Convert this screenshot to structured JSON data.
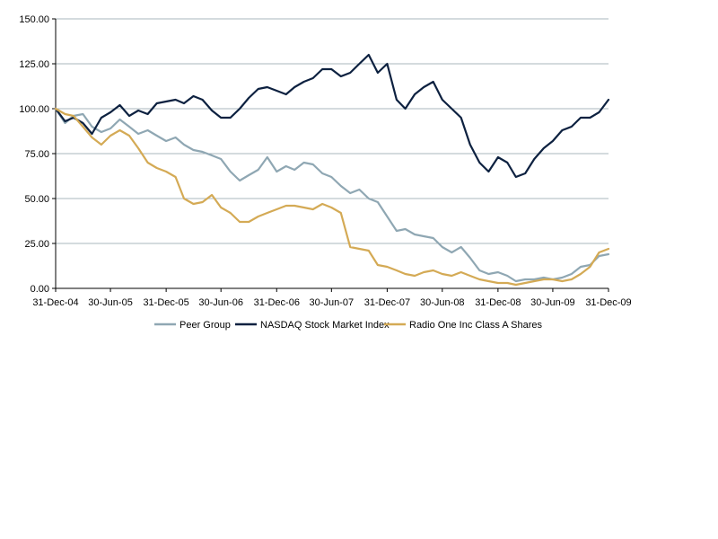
{
  "chart_data": {
    "type": "line",
    "title": "",
    "xlabel": "",
    "ylabel": "",
    "ylim": [
      0,
      150
    ],
    "yticks": [
      "0.00",
      "25.00",
      "50.00",
      "75.00",
      "100.00",
      "125.00",
      "150.00"
    ],
    "xlim": [
      "2004-12-31",
      "2009-12-31"
    ],
    "xticks": [
      {
        "date": "2004-12-31",
        "label": "31-Dec-04"
      },
      {
        "date": "2005-06-30",
        "label": "30-Jun-05"
      },
      {
        "date": "2005-12-31",
        "label": "31-Dec-05"
      },
      {
        "date": "2006-06-30",
        "label": "30-Jun-06"
      },
      {
        "date": "2006-12-31",
        "label": "31-Dec-06"
      },
      {
        "date": "2007-06-30",
        "label": "30-Jun-07"
      },
      {
        "date": "2007-12-31",
        "label": "31-Dec-07"
      },
      {
        "date": "2008-06-30",
        "label": "30-Jun-08"
      },
      {
        "date": "2008-12-31",
        "label": "31-Dec-08"
      },
      {
        "date": "2009-06-30",
        "label": "30-Jun-09"
      },
      {
        "date": "2009-12-31",
        "label": "31-Dec-09"
      }
    ],
    "grid": true,
    "legend_position": "bottom",
    "series": [
      {
        "name": "Peer Group",
        "color": "#8fa7b3",
        "x": [
          "2004-12-31",
          "2005-01-31",
          "2005-02-28",
          "2005-03-31",
          "2005-04-30",
          "2005-05-31",
          "2005-06-30",
          "2005-07-31",
          "2005-08-31",
          "2005-09-30",
          "2005-10-31",
          "2005-11-30",
          "2005-12-31",
          "2006-01-31",
          "2006-02-28",
          "2006-03-31",
          "2006-04-30",
          "2006-05-31",
          "2006-06-30",
          "2006-07-31",
          "2006-08-31",
          "2006-09-30",
          "2006-10-31",
          "2006-11-30",
          "2006-12-31",
          "2007-01-31",
          "2007-02-28",
          "2007-03-31",
          "2007-04-30",
          "2007-05-31",
          "2007-06-30",
          "2007-07-31",
          "2007-08-31",
          "2007-09-30",
          "2007-10-31",
          "2007-11-30",
          "2007-12-31",
          "2008-01-31",
          "2008-02-29",
          "2008-03-31",
          "2008-04-30",
          "2008-05-31",
          "2008-06-30",
          "2008-07-31",
          "2008-08-31",
          "2008-09-30",
          "2008-10-31",
          "2008-11-30",
          "2008-12-31",
          "2009-01-31",
          "2009-02-28",
          "2009-03-31",
          "2009-04-30",
          "2009-05-31",
          "2009-06-30",
          "2009-07-31",
          "2009-08-31",
          "2009-09-30",
          "2009-10-31",
          "2009-11-30",
          "2009-12-31"
        ],
        "values": [
          100,
          92,
          96,
          97,
          90,
          87,
          89,
          94,
          90,
          86,
          88,
          85,
          82,
          84,
          80,
          77,
          76,
          74,
          72,
          65,
          60,
          63,
          66,
          73,
          65,
          68,
          66,
          70,
          69,
          64,
          62,
          57,
          53,
          55,
          50,
          48,
          40,
          32,
          33,
          30,
          29,
          28,
          23,
          20,
          23,
          17,
          10,
          8,
          9,
          7,
          4,
          5,
          5,
          6,
          5,
          6,
          8,
          12,
          13,
          18,
          19
        ]
      },
      {
        "name": "NASDAQ Stock Market Index",
        "color": "#0d2140",
        "x": [
          "2004-12-31",
          "2005-01-31",
          "2005-02-28",
          "2005-03-31",
          "2005-04-30",
          "2005-05-31",
          "2005-06-30",
          "2005-07-31",
          "2005-08-31",
          "2005-09-30",
          "2005-10-31",
          "2005-11-30",
          "2005-12-31",
          "2006-01-31",
          "2006-02-28",
          "2006-03-31",
          "2006-04-30",
          "2006-05-31",
          "2006-06-30",
          "2006-07-31",
          "2006-08-31",
          "2006-09-30",
          "2006-10-31",
          "2006-11-30",
          "2006-12-31",
          "2007-01-31",
          "2007-02-28",
          "2007-03-31",
          "2007-04-30",
          "2007-05-31",
          "2007-06-30",
          "2007-07-31",
          "2007-08-31",
          "2007-09-30",
          "2007-10-31",
          "2007-11-30",
          "2007-12-31",
          "2008-01-31",
          "2008-02-29",
          "2008-03-31",
          "2008-04-30",
          "2008-05-31",
          "2008-06-30",
          "2008-07-31",
          "2008-08-31",
          "2008-09-30",
          "2008-10-31",
          "2008-11-30",
          "2008-12-31",
          "2009-01-31",
          "2009-02-28",
          "2009-03-31",
          "2009-04-30",
          "2009-05-31",
          "2009-06-30",
          "2009-07-31",
          "2009-08-31",
          "2009-09-30",
          "2009-10-31",
          "2009-11-30",
          "2009-12-31"
        ],
        "values": [
          100,
          93,
          95,
          92,
          86,
          95,
          98,
          102,
          96,
          99,
          97,
          103,
          104,
          105,
          103,
          107,
          105,
          99,
          95,
          95,
          100,
          106,
          111,
          112,
          110,
          108,
          112,
          115,
          117,
          122,
          122,
          118,
          120,
          125,
          130,
          120,
          125,
          105,
          100,
          108,
          112,
          115,
          105,
          100,
          95,
          80,
          70,
          65,
          73,
          70,
          62,
          64,
          72,
          78,
          82,
          88,
          90,
          95,
          95,
          98,
          105
        ]
      },
      {
        "name": "Radio One Inc Class A Shares",
        "color": "#d4aa55",
        "x": [
          "2004-12-31",
          "2005-01-31",
          "2005-02-28",
          "2005-03-31",
          "2005-04-30",
          "2005-05-31",
          "2005-06-30",
          "2005-07-31",
          "2005-08-31",
          "2005-09-30",
          "2005-10-31",
          "2005-11-30",
          "2005-12-31",
          "2006-01-31",
          "2006-02-28",
          "2006-03-31",
          "2006-04-30",
          "2006-05-31",
          "2006-06-30",
          "2006-07-31",
          "2006-08-31",
          "2006-09-30",
          "2006-10-31",
          "2006-11-30",
          "2006-12-31",
          "2007-01-31",
          "2007-02-28",
          "2007-03-31",
          "2007-04-30",
          "2007-05-31",
          "2007-06-30",
          "2007-07-31",
          "2007-08-31",
          "2007-09-30",
          "2007-10-31",
          "2007-11-30",
          "2007-12-31",
          "2008-01-31",
          "2008-02-29",
          "2008-03-31",
          "2008-04-30",
          "2008-05-31",
          "2008-06-30",
          "2008-07-31",
          "2008-08-31",
          "2008-09-30",
          "2008-10-31",
          "2008-11-30",
          "2008-12-31",
          "2009-01-31",
          "2009-02-28",
          "2009-03-31",
          "2009-04-30",
          "2009-05-31",
          "2009-06-30",
          "2009-07-31",
          "2009-08-31",
          "2009-09-30",
          "2009-10-31",
          "2009-11-30",
          "2009-12-31"
        ],
        "values": [
          100,
          97,
          96,
          90,
          84,
          80,
          85,
          88,
          85,
          78,
          70,
          67,
          65,
          62,
          50,
          47,
          48,
          52,
          45,
          42,
          37,
          37,
          40,
          42,
          44,
          46,
          46,
          45,
          44,
          47,
          45,
          42,
          23,
          22,
          21,
          13,
          12,
          10,
          8,
          7,
          9,
          10,
          8,
          7,
          9,
          7,
          5,
          4,
          3,
          3,
          2,
          3,
          4,
          5,
          5,
          4,
          5,
          8,
          12,
          20,
          22
        ]
      }
    ]
  }
}
